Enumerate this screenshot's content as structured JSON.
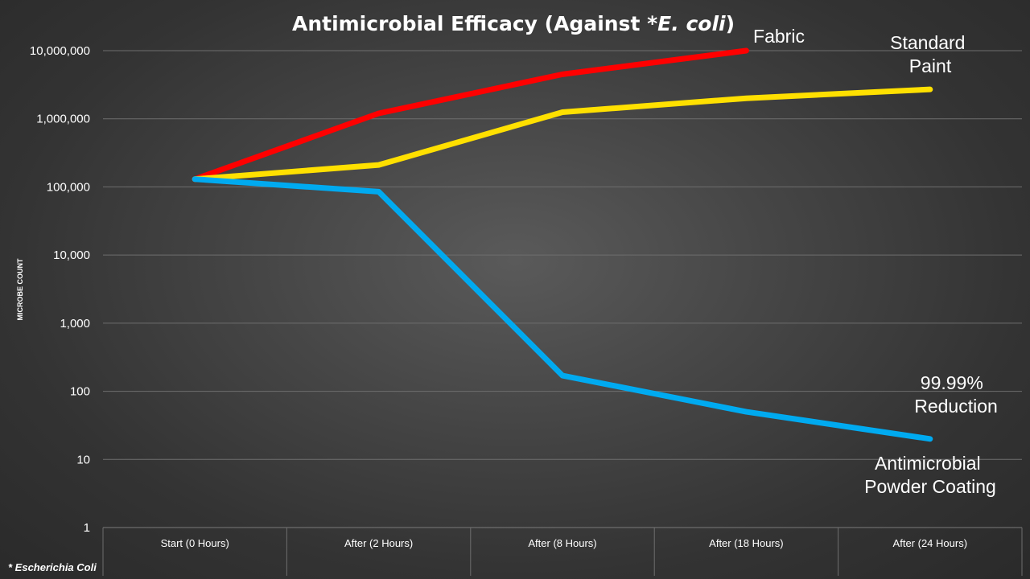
{
  "chart_data": {
    "type": "line",
    "title": "Antimicrobial Efficacy (Against *",
    "title_italic": "E. coli",
    "title_close": ")",
    "ylabel": "MICROBE COUNT",
    "y_scale": "log",
    "ylim": [
      1,
      10000000
    ],
    "y_ticks": [
      "1",
      "10",
      "100",
      "1,000",
      "10,000",
      "100,000",
      "1,000,000",
      "10,000,000"
    ],
    "categories": [
      "Start (0 Hours)",
      "After (2 Hours)",
      "After (8 Hours)",
      "After (18 Hours)",
      "After (24 Hours)"
    ],
    "grid": true,
    "series": [
      {
        "name": "Fabric",
        "color": "#ff0000",
        "values": [
          130000,
          1200000,
          4500000,
          10000000,
          null
        ]
      },
      {
        "name": "Standard Paint",
        "color": "#ffe000",
        "values": [
          130000,
          210000,
          1250000,
          2000000,
          2700000
        ]
      },
      {
        "name": "Antimicrobial Powder Coating",
        "color": "#00aaf0",
        "values": [
          130000,
          85000,
          170,
          50,
          20
        ]
      }
    ],
    "annotations": {
      "fabric": [
        "Fabric"
      ],
      "paint": [
        "Standard",
        "Paint"
      ],
      "reduction": [
        "99.99%",
        "Reduction"
      ],
      "coating": [
        "Antimicrobial",
        "Powder Coating"
      ]
    },
    "footnote": "* Escherichia Coli"
  }
}
